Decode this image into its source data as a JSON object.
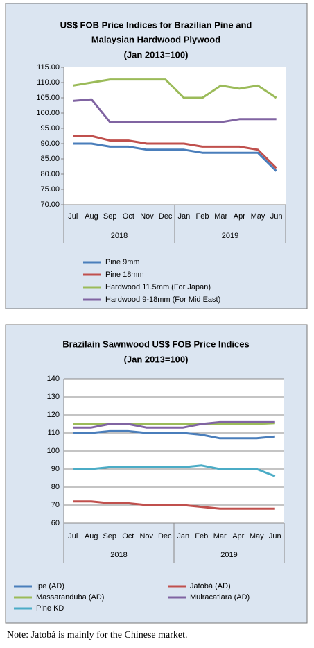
{
  "chart_data": [
    {
      "type": "line",
      "title": [
        "US$ FOB Price Indices for Brazilian Pine and",
        "Malaysian Hardwood Plywood",
        "(Jan 2013=100)"
      ],
      "categories": [
        "Jul",
        "Aug",
        "Sep",
        "Oct",
        "Nov",
        "Dec",
        "Jan",
        "Feb",
        "Mar",
        "Apr",
        "May",
        "Jun"
      ],
      "year_groups": [
        "2018",
        "2019"
      ],
      "ylim": [
        70,
        115
      ],
      "yticks": [
        {
          "value": 70,
          "label": "70.00"
        },
        {
          "value": 75,
          "label": "75.00"
        },
        {
          "value": 80,
          "label": "80.00"
        },
        {
          "value": 85,
          "label": "85.00"
        },
        {
          "value": 90,
          "label": "90.00"
        },
        {
          "value": 95,
          "label": "95.00"
        },
        {
          "value": 100,
          "label": "100.00"
        },
        {
          "value": 105,
          "label": "105.00"
        },
        {
          "value": 110,
          "label": "110.00"
        },
        {
          "value": 115,
          "label": "115.00"
        }
      ],
      "grid": false,
      "series": [
        {
          "name": "Pine 9mm",
          "color": "#4a7ebb",
          "values": [
            90,
            90,
            89,
            89,
            88,
            88,
            88,
            87,
            87,
            87,
            87,
            81
          ]
        },
        {
          "name": "Pine 18mm",
          "color": "#c0504d",
          "values": [
            92.5,
            92.5,
            91,
            91,
            90,
            90,
            90,
            89,
            89,
            89,
            88,
            82
          ]
        },
        {
          "name": "Hardwood 11.5mm (For Japan)",
          "color": "#9bbb59",
          "values": [
            109,
            110,
            111,
            111,
            111,
            111,
            105,
            105,
            109,
            108,
            109,
            105
          ]
        },
        {
          "name": "Hardwood 9-18mm (For Mid East)",
          "color": "#8064a2",
          "values": [
            104,
            104.5,
            97,
            97,
            97,
            97,
            97,
            97,
            97,
            98,
            98,
            98
          ]
        }
      ]
    },
    {
      "type": "line",
      "title": [
        "Brazilain Sawnwood US$ FOB Price Indices",
        "(Jan 2013=100)"
      ],
      "categories": [
        "Jul",
        "Aug",
        "Sep",
        "Oct",
        "Nov",
        "Dec",
        "Jan",
        "Feb",
        "Mar",
        "Apr",
        "May",
        "Jun"
      ],
      "year_groups": [
        "2018",
        "2019"
      ],
      "ylim": [
        60,
        140
      ],
      "yticks": [
        60,
        70,
        80,
        90,
        100,
        110,
        120,
        130,
        140
      ],
      "grid": true,
      "series": [
        {
          "name": "Ipe (AD)",
          "color": "#4a7ebb",
          "values": [
            110,
            110,
            111,
            111,
            110,
            110,
            110,
            109,
            107,
            107,
            107,
            108
          ]
        },
        {
          "name": "Jatobá (AD)",
          "color": "#c0504d",
          "values": [
            72,
            72,
            71,
            71,
            70,
            70,
            70,
            69,
            68,
            68,
            68,
            68
          ]
        },
        {
          "name": "Massaranduba (AD)",
          "color": "#9bbb59",
          "values": [
            115,
            115,
            115,
            115,
            115,
            115,
            115,
            115,
            115,
            115,
            115,
            115.5
          ]
        },
        {
          "name": "Muiracatiara (AD)",
          "color": "#8064a2",
          "values": [
            113,
            113,
            115,
            115,
            113,
            113,
            113,
            115,
            116,
            116,
            116,
            116
          ]
        },
        {
          "name": "Pine KD",
          "color": "#4bacc6",
          "values": [
            90,
            90,
            91,
            91,
            91,
            91,
            91,
            92,
            90,
            90,
            90,
            86
          ]
        }
      ]
    }
  ],
  "note": "Note: Jatobá is mainly for the Chinese market."
}
